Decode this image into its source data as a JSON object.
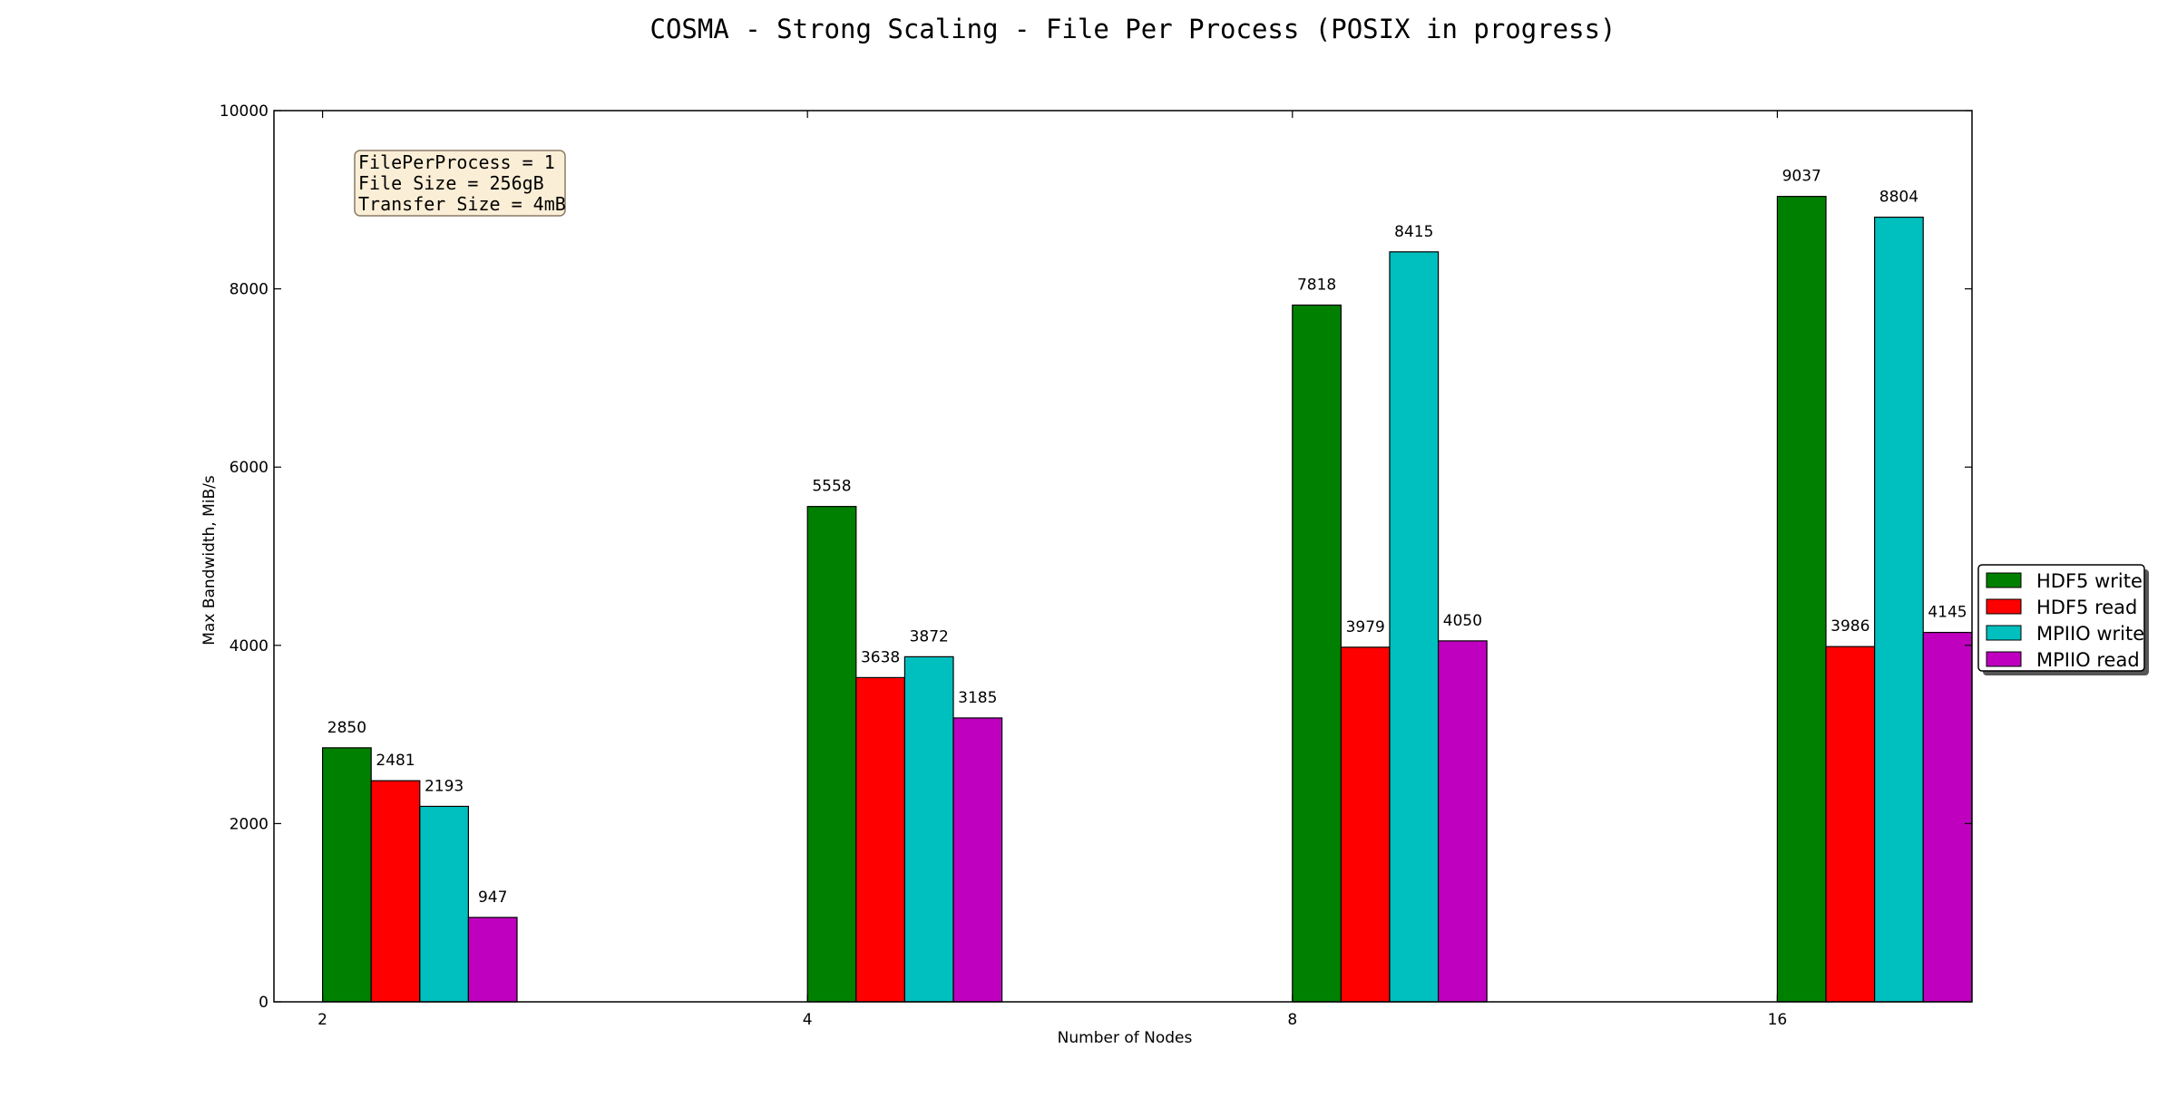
{
  "chart_data": {
    "type": "bar",
    "title": "COSMA - Strong Scaling - File Per Process (POSIX in progress)",
    "xlabel": "Number of Nodes",
    "ylabel": "Max Bandwidth, MiB/s",
    "categories": [
      "2",
      "4",
      "8",
      "16"
    ],
    "ylim": [
      0,
      10000
    ],
    "yticks": [
      "0",
      "2000",
      "4000",
      "6000",
      "8000",
      "10000"
    ],
    "grid": false,
    "legend_position": "right",
    "series": [
      {
        "name": "HDF5 write",
        "color": "#008000",
        "values": [
          2850,
          5558,
          7818,
          9037
        ]
      },
      {
        "name": "HDF5 read",
        "color": "#ff0000",
        "values": [
          2481,
          3638,
          3979,
          3986
        ]
      },
      {
        "name": "MPIIO write",
        "color": "#00bfbf",
        "values": [
          2193,
          3872,
          8415,
          8804
        ]
      },
      {
        "name": "MPIIO read",
        "color": "#bf00bf",
        "values": [
          947,
          3185,
          4050,
          4145
        ]
      }
    ],
    "annotation": [
      "FilePerProcess = 1",
      "File Size = 256gB",
      "Transfer Size = 4mB"
    ]
  }
}
